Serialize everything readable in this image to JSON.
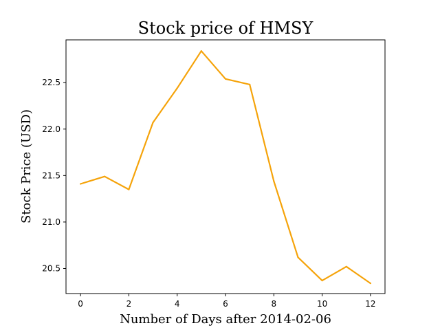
{
  "chart_data": {
    "type": "line",
    "title": "Stock price of HMSY",
    "xlabel": "Number of Days after 2014-02-06",
    "ylabel": "Stock Price (USD)",
    "xlim": [
      -0.6,
      12.6
    ],
    "ylim": [
      20.23,
      22.96
    ],
    "xticks": [
      0,
      2,
      4,
      6,
      8,
      10,
      12
    ],
    "xtick_labels": [
      "0",
      "2",
      "4",
      "6",
      "8",
      "10",
      "12"
    ],
    "yticks": [
      20.5,
      21.0,
      21.5,
      22.0,
      22.5
    ],
    "ytick_labels": [
      "20.5",
      "21.0",
      "21.5",
      "22.0",
      "22.5"
    ],
    "grid": false,
    "series": [
      {
        "color": "#f5a30a",
        "x": [
          0,
          1,
          2,
          3,
          4,
          5,
          6,
          7,
          8,
          9,
          10,
          11,
          12
        ],
        "y": [
          21.41,
          21.49,
          21.35,
          22.07,
          22.44,
          22.84,
          22.54,
          22.48,
          21.44,
          20.62,
          20.37,
          20.52,
          20.34
        ]
      }
    ]
  }
}
